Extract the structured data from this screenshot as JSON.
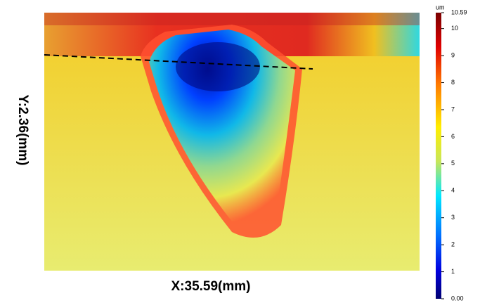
{
  "image": {
    "x_label": "X:35.59(mm)",
    "y_label": "Y:2.36(mm)"
  },
  "colorbar": {
    "unit": "um",
    "lim": [
      0,
      10.59
    ],
    "ticks": [
      {
        "value": 0,
        "label": "0.00"
      },
      1,
      2,
      3,
      4,
      5,
      6,
      7,
      8,
      9,
      10,
      10.59
    ]
  }
}
